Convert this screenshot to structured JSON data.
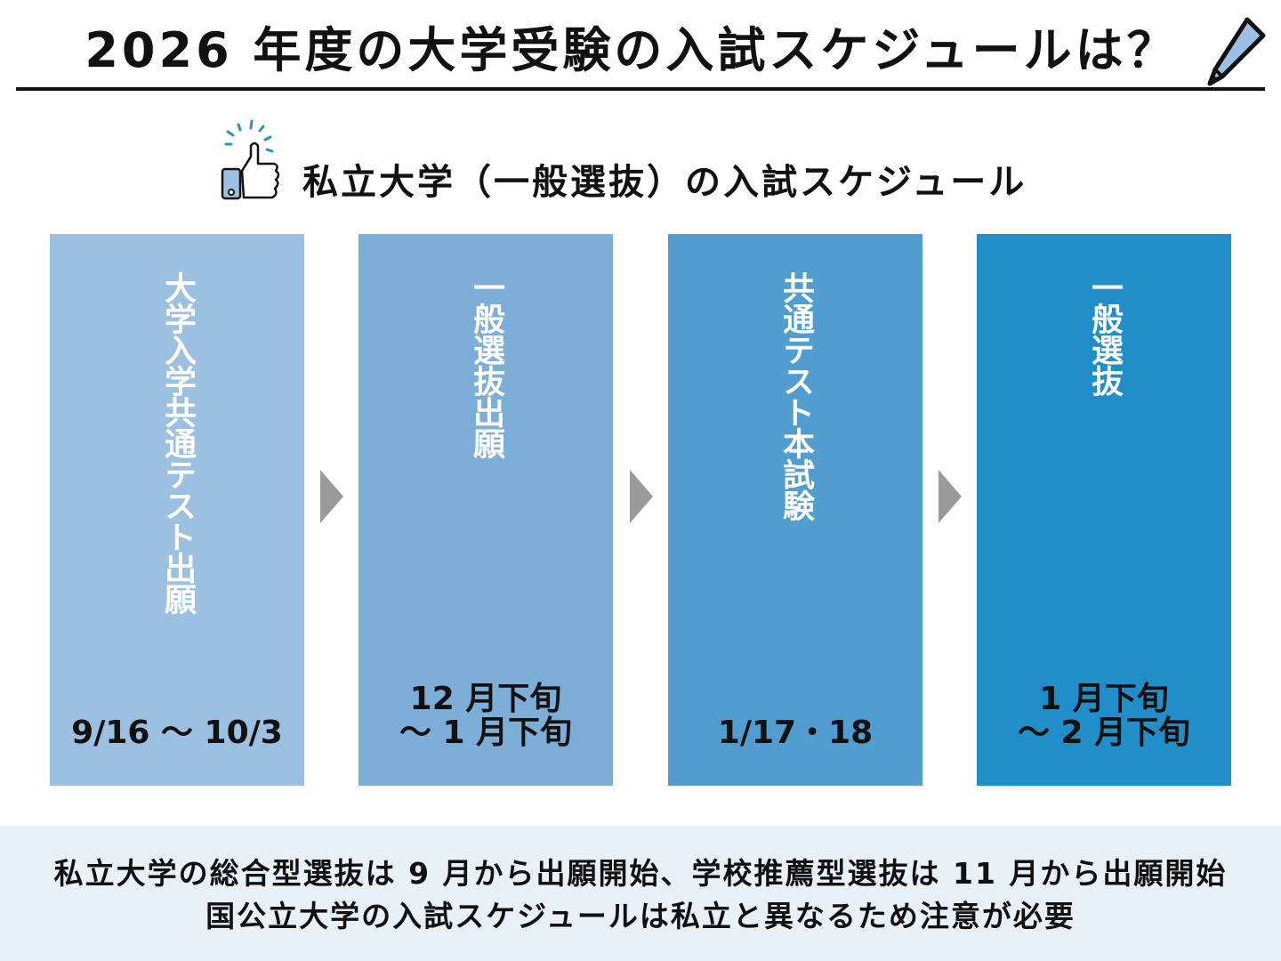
{
  "header": {
    "title": "2026 年度の大学受験の入試スケジュールは？"
  },
  "section": {
    "title": "私立大学（一般選抜）の入試スケジュール"
  },
  "colors": {
    "step1": "#9cc0e1",
    "step2": "#7daed7",
    "step3": "#529dd0",
    "step4": "#218ec9",
    "arrow": "#9a9a9a",
    "note_bg": "#e8f0f8"
  },
  "steps": [
    {
      "label": "大学入学共通テスト出願",
      "date": "9/16 〜 10/3"
    },
    {
      "label": "一般選抜出願",
      "date_line1": "12 月下旬",
      "date_line2": "〜 1 月下旬"
    },
    {
      "label": "共通テスト本試験",
      "date": "1/17・18"
    },
    {
      "label": "一般選抜",
      "date_line1": "1 月下旬",
      "date_line2": "〜 2 月下旬"
    }
  ],
  "note": {
    "line1": "私立大学の総合型選抜は 9 月から出願開始、学校推薦型選抜は 11 月から出願開始",
    "line2": "国公立大学の入試スケジュールは私立と異なるため注意が必要"
  }
}
